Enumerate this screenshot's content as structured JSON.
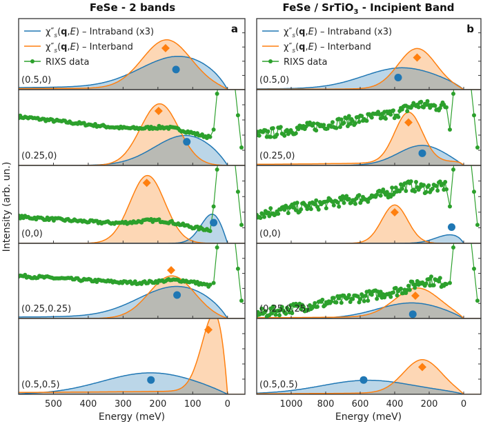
{
  "figure": {
    "ylabel": "Intensity (arb. un.)",
    "colors": {
      "intraband": "#1f77b4",
      "interband": "#ff7f0e",
      "rixs": "#2ca02c",
      "intraband_fill": "#a6c8e3",
      "interband_fill": "#fdd0a8",
      "overlap_fill": "#c8b4a0"
    }
  },
  "chart_data": [
    {
      "type": "line",
      "panel": "a",
      "title": "FeSe - 2 bands",
      "xlabel": "Energy (meV)",
      "ylabel": "Intensity (arb. un.)",
      "xlim": [
        600,
        -50
      ],
      "xticks": [
        500,
        400,
        300,
        200,
        100,
        0
      ],
      "xtick_labels": [
        "500",
        "400",
        "300",
        "200",
        "100",
        "0"
      ],
      "legend": {
        "position": "top-left",
        "entries": [
          {
            "series": "intraband",
            "label": "χ″s(q,E) – Intraband (x3)"
          },
          {
            "series": "interband",
            "label": "χ″s(q,E) – Interband"
          },
          {
            "series": "rixs",
            "label": "RIXS data"
          }
        ]
      },
      "subplots": [
        {
          "q": "(0.5, 0)",
          "intraband": {
            "peak_meV": 140,
            "width_meV": 110,
            "height": 0.45,
            "tail": 0.06
          },
          "interband": {
            "peak_meV": 175,
            "width_meV": 70,
            "height": 0.72,
            "tail": 0.03
          },
          "markers": {
            "interband_diamond": {
              "x": 178,
              "y": 0.62
            },
            "intraband_circle": {
              "x": 148,
              "y": 0.3
            }
          },
          "rixs": null
        },
        {
          "q": "(0.25, 0)",
          "intraband": {
            "peak_meV": 120,
            "width_meV": 90,
            "height": 0.42,
            "tail": 0.0
          },
          "interband": {
            "peak_meV": 195,
            "width_meV": 55,
            "height": 0.86,
            "tail": 0.0
          },
          "markers": {
            "interband_diamond": {
              "x": 198,
              "y": 0.76
            },
            "intraband_circle": {
              "x": 117,
              "y": 0.33
            }
          },
          "rixs": {
            "background_start": 0.68,
            "background_end": 0.38,
            "elastic_peak_meV": 0
          }
        },
        {
          "q": "(0, 0)",
          "intraband": {
            "peak_meV": 40,
            "width_meV": 35,
            "height": 0.42,
            "tail": 0.0
          },
          "interband": {
            "peak_meV": 230,
            "width_meV": 50,
            "height": 0.92,
            "tail": 0.0
          },
          "markers": {
            "interband_diamond": {
              "x": 232,
              "y": 0.82
            },
            "intraband_circle": {
              "x": 40,
              "y": 0.28
            }
          },
          "rixs": {
            "background_start": 0.36,
            "background_end": 0.18,
            "elastic_peak_meV": 0
          }
        },
        {
          "q": "(0.25, 0.25)",
          "intraband": {
            "peak_meV": 145,
            "width_meV": 110,
            "height": 0.42,
            "tail": 0.04
          },
          "interband": {
            "peak_meV": 160,
            "width_meV": 65,
            "height": 0.6,
            "tail": 0.0
          },
          "markers": {
            "interband_diamond": {
              "x": 162,
              "y": 0.68
            },
            "intraband_circle": {
              "x": 145,
              "y": 0.33
            }
          },
          "rixs": {
            "background_start": 0.6,
            "background_end": 0.43,
            "elastic_peak_meV": 0
          }
        },
        {
          "q": "(0.5, 0.5)",
          "intraband": {
            "peak_meV": 220,
            "width_meV": 140,
            "height": 0.3,
            "tail": 0.0
          },
          "interband": {
            "peak_meV": 30,
            "width_meV": 40,
            "height": 1.2,
            "tail": 0.05
          },
          "markers": {
            "interband_diamond": {
              "x": 55,
              "y": 0.9
            },
            "intraband_circle": {
              "x": 220,
              "y": 0.2
            }
          },
          "rixs": null
        }
      ]
    },
    {
      "type": "line",
      "panel": "b",
      "title": "FeSe / SrTiO3 - Incipient Band",
      "xlabel": "Energy (meV)",
      "ylabel": "Intensity (arb. un.)",
      "xlim": [
        1200,
        -100
      ],
      "xticks": [
        1000,
        800,
        600,
        400,
        200,
        0
      ],
      "xtick_labels": [
        "1000",
        "800",
        "600",
        "400",
        "200",
        "0"
      ],
      "legend": {
        "position": "top-left",
        "entries": [
          {
            "series": "intraband",
            "label": "χ″s(q,E) – Intraband (x3)"
          },
          {
            "series": "interband",
            "label": "χ″s(q,E) – Interband"
          },
          {
            "series": "rixs",
            "label": "RIXS data"
          }
        ]
      },
      "subplots": [
        {
          "q": "(0.5, 0)",
          "intraband": {
            "peak_meV": 360,
            "width_meV": 220,
            "height": 0.3,
            "tail": 0.04
          },
          "interband": {
            "peak_meV": 270,
            "width_meV": 110,
            "height": 0.6,
            "tail": 0.02
          },
          "markers": {
            "interband_diamond": {
              "x": 270,
              "y": 0.48
            },
            "intraband_circle": {
              "x": 380,
              "y": 0.18
            }
          },
          "rixs": null
        },
        {
          "q": "(0.25, 0)",
          "intraband": {
            "peak_meV": 240,
            "width_meV": 140,
            "height": 0.28,
            "tail": 0.0
          },
          "interband": {
            "peak_meV": 320,
            "width_meV": 80,
            "height": 0.7,
            "tail": 0.06
          },
          "markers": {
            "interband_diamond": {
              "x": 320,
              "y": 0.6
            },
            "intraband_circle": {
              "x": 240,
              "y": 0.17
            }
          },
          "rixs": {
            "background_start": 0.42,
            "background_end": 0.83,
            "elastic_peak_meV": 0
          }
        },
        {
          "q": "(0, 0)",
          "intraband": {
            "peak_meV": 70,
            "width_meV": 90,
            "height": 0.12,
            "tail": 0.0
          },
          "interband": {
            "peak_meV": 400,
            "width_meV": 75,
            "height": 0.52,
            "tail": 0.0
          },
          "markers": {
            "interband_diamond": {
              "x": 400,
              "y": 0.42
            },
            "intraband_circle": {
              "x": 70,
              "y": 0.22
            }
          },
          "rixs": {
            "background_start": 0.4,
            "background_end": 0.78,
            "elastic_peak_meV": 0
          }
        },
        {
          "q": "(0.25, 0.25)",
          "intraband": {
            "peak_meV": 300,
            "width_meV": 200,
            "height": 0.22,
            "tail": 0.0
          },
          "interband": {
            "peak_meV": 270,
            "width_meV": 130,
            "height": 0.4,
            "tail": 0.04
          },
          "markers": {
            "interband_diamond": {
              "x": 280,
              "y": 0.32
            },
            "intraband_circle": {
              "x": 295,
              "y": 0.06
            }
          },
          "rixs": {
            "background_start": 0.06,
            "background_end": 0.5,
            "elastic_peak_meV": 0
          }
        },
        {
          "q": "(0.5, 0.5)",
          "intraband": {
            "peak_meV": 560,
            "width_meV": 260,
            "height": 0.18,
            "tail": 0.03
          },
          "interband": {
            "peak_meV": 240,
            "width_meV": 110,
            "height": 0.46,
            "tail": 0.03
          },
          "markers": {
            "interband_diamond": {
              "x": 240,
              "y": 0.38
            },
            "intraband_circle": {
              "x": 580,
              "y": 0.2
            }
          },
          "rixs": null
        }
      ]
    }
  ]
}
